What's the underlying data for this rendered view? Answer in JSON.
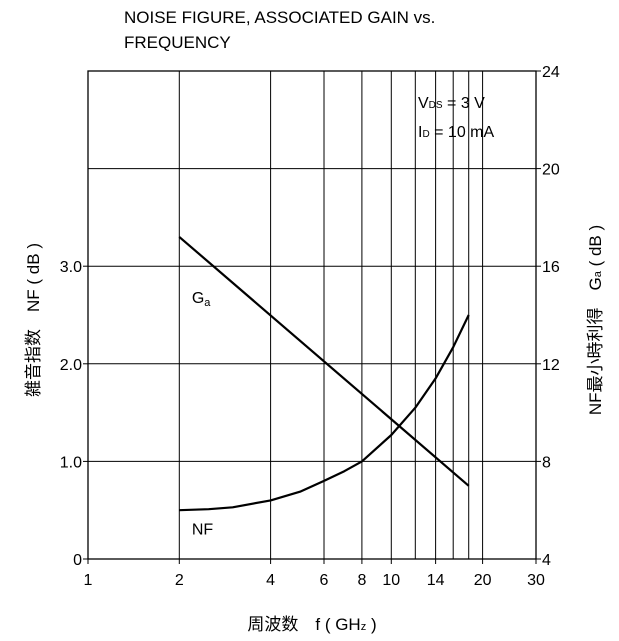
{
  "chart_data": {
    "type": "line",
    "title_lines": [
      "NOISE FIGURE, ASSOCIATED GAIN vs.",
      "FREQUENCY"
    ],
    "conditions": [
      {
        "main": "V",
        "sub": "DS",
        "rest": " = 3 V"
      },
      {
        "main": "I",
        "sub": "D",
        "rest": " = 10 mA"
      }
    ],
    "x_axis": {
      "label_main": "周波数　f ( GH",
      "label_sub": "z",
      "label_end": " )",
      "scale": "log",
      "range": [
        1,
        30
      ],
      "ticks": [
        {
          "value": 1,
          "label": "1"
        },
        {
          "value": 2,
          "label": "2"
        },
        {
          "value": 4,
          "label": "4"
        },
        {
          "value": 6,
          "label": "6"
        },
        {
          "value": 8,
          "label": "8"
        },
        {
          "value": 10,
          "label": "10"
        },
        {
          "value": 14,
          "label": "14"
        },
        {
          "value": 20,
          "label": "20"
        },
        {
          "value": 30,
          "label": "30"
        }
      ],
      "gridlines": [
        2,
        4,
        6,
        8,
        10,
        12,
        14,
        16,
        18,
        20
      ]
    },
    "y_left": {
      "label": "雑音指数　NF ( dB )",
      "range": [
        0,
        5
      ],
      "ticks": [
        {
          "value": 0,
          "label": "0"
        },
        {
          "value": 1,
          "label": "1.0"
        },
        {
          "value": 2,
          "label": "2.0"
        },
        {
          "value": 3,
          "label": "3.0"
        }
      ]
    },
    "y_right": {
      "label_main": "NF最小時利得　G",
      "label_sub": "a",
      "label_end": " ( dB )",
      "range": [
        4,
        24
      ],
      "ticks": [
        {
          "value": 4,
          "label": "4"
        },
        {
          "value": 8,
          "label": "8"
        },
        {
          "value": 12,
          "label": "12"
        },
        {
          "value": 16,
          "label": "16"
        },
        {
          "value": 20,
          "label": "20"
        },
        {
          "value": 24,
          "label": "24"
        }
      ]
    },
    "grid": true,
    "series": [
      {
        "name": "NF",
        "label_main": "NF",
        "label_sub": "",
        "axis": "left",
        "points": [
          [
            2,
            0.5
          ],
          [
            2.5,
            0.51
          ],
          [
            3,
            0.53
          ],
          [
            4,
            0.6
          ],
          [
            5,
            0.69
          ],
          [
            6,
            0.8
          ],
          [
            7,
            0.9
          ],
          [
            8,
            1.0
          ],
          [
            10,
            1.27
          ],
          [
            12,
            1.55
          ],
          [
            14,
            1.85
          ],
          [
            16,
            2.17
          ],
          [
            18,
            2.5
          ]
        ]
      },
      {
        "name": "Ga",
        "label_main": "G",
        "label_sub": "a",
        "axis": "right",
        "points": [
          [
            2,
            17.2
          ],
          [
            18,
            7.0
          ]
        ]
      }
    ]
  }
}
